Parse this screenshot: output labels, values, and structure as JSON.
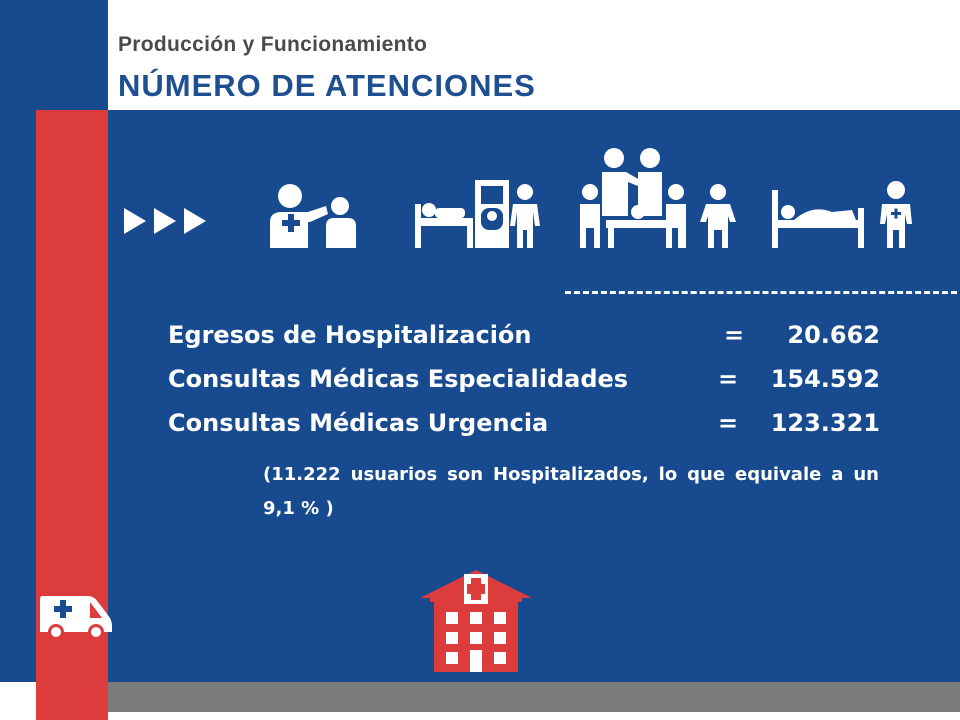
{
  "header": {
    "subtitle": "Producción y Funcionamiento",
    "title": "NÚMERO DE ATENCIONES"
  },
  "stats": [
    {
      "label": "Egresos de Hospitalización",
      "equals": "=",
      "value": "20.662"
    },
    {
      "label": "Consultas Médicas Especialidades",
      "equals": "=",
      "value": "154.592"
    },
    {
      "label": "Consultas Médicas Urgencia",
      "equals": "=",
      "value": "123.321"
    }
  ],
  "note": "(11.222 usuarios son Hospitalizados, lo que equivale a un 9,1 % )",
  "icons": [
    "arrows-icon",
    "patient-consult-icon",
    "hospital-bed-door-icon",
    "medical-team-icon",
    "patient-bed-nurse-icon",
    "ambulance-icon",
    "hospital-building-icon"
  ],
  "colors": {
    "blue": "#174a8f",
    "red": "#dc3c3c",
    "gray": "#7b7b7b",
    "title_blue": "#1d4f91"
  }
}
